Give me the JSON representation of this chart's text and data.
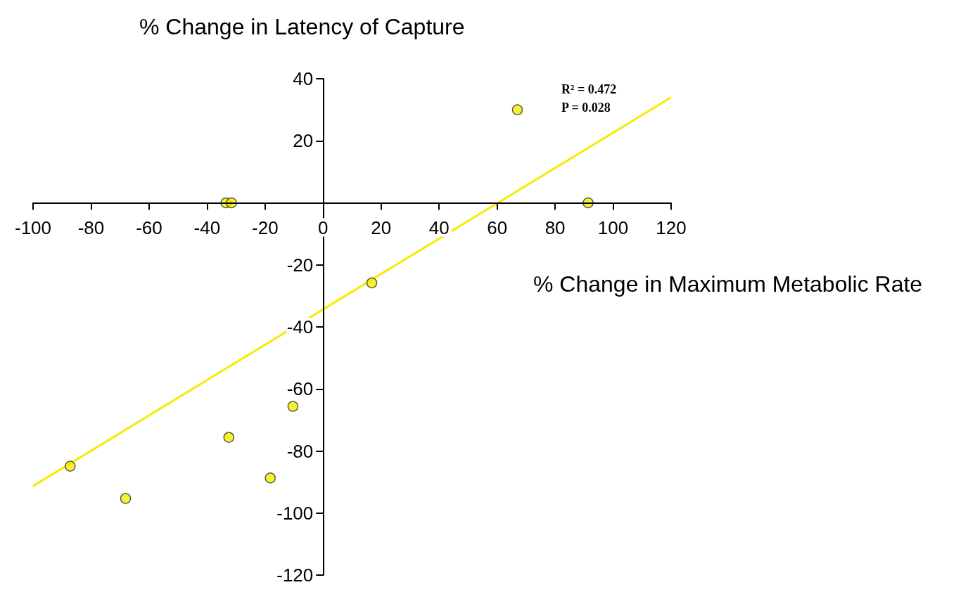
{
  "chart_data": {
    "type": "scatter",
    "ylabel": "% Change in Latency of Capture",
    "xlabel": "% Change in Maximum Metabolic Rate",
    "annotations": [
      "R² = 0.472",
      "P = 0.028"
    ],
    "xlim": [
      -100,
      120
    ],
    "xticks": [
      -100,
      -80,
      -60,
      -40,
      -20,
      0,
      20,
      40,
      60,
      80,
      100,
      120
    ],
    "ylim": [
      -120,
      40
    ],
    "yticks": [
      -120,
      -100,
      -80,
      -60,
      -40,
      -20,
      20,
      40
    ],
    "marker": "circle",
    "series": [
      {
        "type": "scatter",
        "color": "#f5ec00",
        "x": [
          -33.5,
          -31.6,
          67,
          91.4,
          16.8,
          -10.4,
          -32.5,
          -18.2,
          -87.2,
          -68.1
        ],
        "values": [
          0,
          0,
          30,
          0,
          -25.8,
          -65.6,
          -75.6,
          -88.7,
          -84.9,
          -95.3
        ]
      },
      {
        "type": "line",
        "color": "#f5ec00",
        "marker": "none",
        "line_style": "solid",
        "x": [
          -100,
          120
        ],
        "values": [
          -91.3,
          34
        ]
      }
    ]
  }
}
